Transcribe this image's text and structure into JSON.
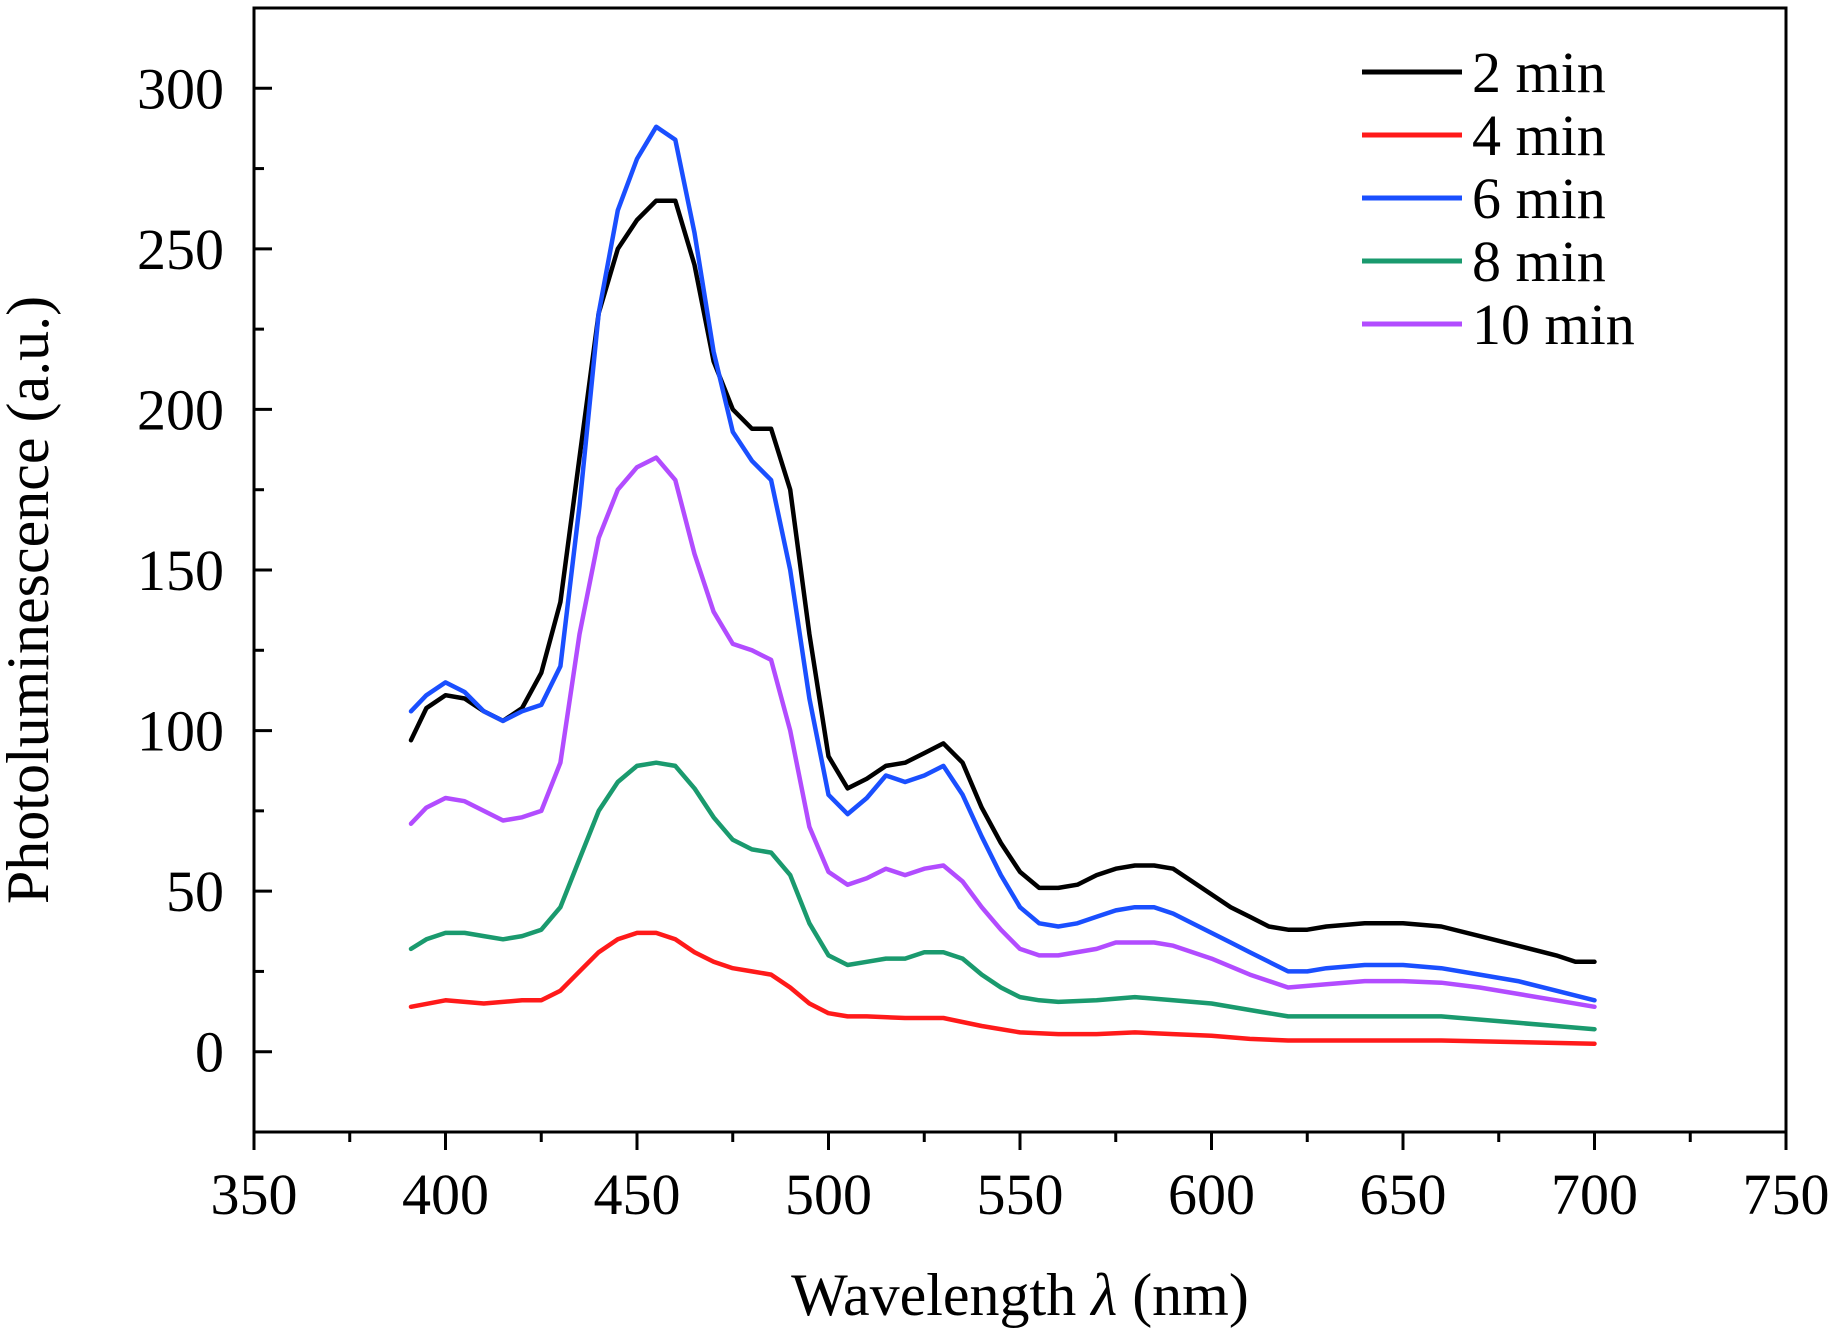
{
  "chart_data": {
    "type": "line",
    "title": "",
    "xlabel": "Wavelength λ (nm)",
    "xlabel_main": "Wavelength ",
    "xlabel_symbol": "λ",
    "xlabel_unit": " (nm)",
    "ylabel": "Photoluminescence (a.u.)",
    "xlim": [
      350,
      750
    ],
    "ylim": [
      -25,
      325
    ],
    "x_ticks": [
      "350",
      "400",
      "450",
      "500",
      "550",
      "600",
      "650",
      "700",
      "750"
    ],
    "y_ticks": [
      "0",
      "50",
      "100",
      "150",
      "200",
      "250",
      "300"
    ],
    "grid": false,
    "legend_position": "top-right",
    "series": [
      {
        "name": "2 min",
        "color": "#000000",
        "points": [
          [
            391,
            97
          ],
          [
            395,
            107
          ],
          [
            400,
            111
          ],
          [
            405,
            110
          ],
          [
            410,
            106
          ],
          [
            415,
            103
          ],
          [
            420,
            107
          ],
          [
            425,
            118
          ],
          [
            430,
            140
          ],
          [
            435,
            185
          ],
          [
            440,
            230
          ],
          [
            445,
            250
          ],
          [
            450,
            259
          ],
          [
            455,
            265
          ],
          [
            460,
            265
          ],
          [
            465,
            245
          ],
          [
            470,
            215
          ],
          [
            475,
            200
          ],
          [
            480,
            194
          ],
          [
            485,
            194
          ],
          [
            490,
            175
          ],
          [
            495,
            130
          ],
          [
            500,
            92
          ],
          [
            505,
            82
          ],
          [
            510,
            85
          ],
          [
            515,
            89
          ],
          [
            520,
            90
          ],
          [
            525,
            93
          ],
          [
            530,
            96
          ],
          [
            535,
            90
          ],
          [
            540,
            76
          ],
          [
            545,
            65
          ],
          [
            550,
            56
          ],
          [
            555,
            51
          ],
          [
            560,
            51
          ],
          [
            565,
            52
          ],
          [
            570,
            55
          ],
          [
            575,
            57
          ],
          [
            580,
            58
          ],
          [
            585,
            58
          ],
          [
            590,
            57
          ],
          [
            595,
            53
          ],
          [
            600,
            49
          ],
          [
            605,
            45
          ],
          [
            610,
            42
          ],
          [
            615,
            39
          ],
          [
            620,
            38
          ],
          [
            625,
            38
          ],
          [
            630,
            39
          ],
          [
            640,
            40
          ],
          [
            650,
            40
          ],
          [
            660,
            39
          ],
          [
            670,
            36
          ],
          [
            680,
            33
          ],
          [
            690,
            30
          ],
          [
            695,
            28
          ],
          [
            700,
            28
          ]
        ]
      },
      {
        "name": "4 min",
        "color": "#ff1a1a",
        "points": [
          [
            391,
            14
          ],
          [
            400,
            16
          ],
          [
            410,
            15
          ],
          [
            420,
            16
          ],
          [
            425,
            16
          ],
          [
            430,
            19
          ],
          [
            435,
            25
          ],
          [
            440,
            31
          ],
          [
            445,
            35
          ],
          [
            450,
            37
          ],
          [
            455,
            37
          ],
          [
            460,
            35
          ],
          [
            465,
            31
          ],
          [
            470,
            28
          ],
          [
            475,
            26
          ],
          [
            480,
            25
          ],
          [
            485,
            24
          ],
          [
            490,
            20
          ],
          [
            495,
            15
          ],
          [
            500,
            12
          ],
          [
            505,
            11
          ],
          [
            510,
            11
          ],
          [
            520,
            10.5
          ],
          [
            530,
            10.5
          ],
          [
            540,
            8
          ],
          [
            550,
            6
          ],
          [
            560,
            5.5
          ],
          [
            570,
            5.5
          ],
          [
            580,
            6
          ],
          [
            590,
            5.5
          ],
          [
            600,
            5
          ],
          [
            610,
            4
          ],
          [
            620,
            3.5
          ],
          [
            640,
            3.5
          ],
          [
            660,
            3.5
          ],
          [
            680,
            3
          ],
          [
            700,
            2.5
          ]
        ]
      },
      {
        "name": "6 min",
        "color": "#1a4fff",
        "points": [
          [
            391,
            106
          ],
          [
            395,
            111
          ],
          [
            400,
            115
          ],
          [
            405,
            112
          ],
          [
            410,
            106
          ],
          [
            415,
            103
          ],
          [
            420,
            106
          ],
          [
            425,
            108
          ],
          [
            430,
            120
          ],
          [
            435,
            170
          ],
          [
            440,
            230
          ],
          [
            445,
            262
          ],
          [
            450,
            278
          ],
          [
            455,
            288
          ],
          [
            460,
            284
          ],
          [
            465,
            255
          ],
          [
            470,
            218
          ],
          [
            475,
            193
          ],
          [
            480,
            184
          ],
          [
            485,
            178
          ],
          [
            490,
            150
          ],
          [
            495,
            110
          ],
          [
            500,
            80
          ],
          [
            505,
            74
          ],
          [
            510,
            79
          ],
          [
            515,
            86
          ],
          [
            520,
            84
          ],
          [
            525,
            86
          ],
          [
            530,
            89
          ],
          [
            535,
            80
          ],
          [
            540,
            67
          ],
          [
            545,
            55
          ],
          [
            550,
            45
          ],
          [
            555,
            40
          ],
          [
            560,
            39
          ],
          [
            565,
            40
          ],
          [
            570,
            42
          ],
          [
            575,
            44
          ],
          [
            580,
            45
          ],
          [
            585,
            45
          ],
          [
            590,
            43
          ],
          [
            595,
            40
          ],
          [
            600,
            37
          ],
          [
            605,
            34
          ],
          [
            610,
            31
          ],
          [
            615,
            28
          ],
          [
            620,
            25
          ],
          [
            625,
            25
          ],
          [
            630,
            26
          ],
          [
            640,
            27
          ],
          [
            650,
            27
          ],
          [
            660,
            26
          ],
          [
            670,
            24
          ],
          [
            680,
            22
          ],
          [
            690,
            19
          ],
          [
            700,
            16
          ]
        ]
      },
      {
        "name": "8 min",
        "color": "#1a9a6e",
        "points": [
          [
            391,
            32
          ],
          [
            395,
            35
          ],
          [
            400,
            37
          ],
          [
            405,
            37
          ],
          [
            410,
            36
          ],
          [
            415,
            35
          ],
          [
            420,
            36
          ],
          [
            425,
            38
          ],
          [
            430,
            45
          ],
          [
            435,
            60
          ],
          [
            440,
            75
          ],
          [
            445,
            84
          ],
          [
            450,
            89
          ],
          [
            455,
            90
          ],
          [
            460,
            89
          ],
          [
            465,
            82
          ],
          [
            470,
            73
          ],
          [
            475,
            66
          ],
          [
            480,
            63
          ],
          [
            485,
            62
          ],
          [
            490,
            55
          ],
          [
            495,
            40
          ],
          [
            500,
            30
          ],
          [
            505,
            27
          ],
          [
            510,
            28
          ],
          [
            515,
            29
          ],
          [
            520,
            29
          ],
          [
            525,
            31
          ],
          [
            530,
            31
          ],
          [
            535,
            29
          ],
          [
            540,
            24
          ],
          [
            545,
            20
          ],
          [
            550,
            17
          ],
          [
            555,
            16
          ],
          [
            560,
            15.5
          ],
          [
            570,
            16
          ],
          [
            580,
            17
          ],
          [
            590,
            16
          ],
          [
            600,
            15
          ],
          [
            610,
            13
          ],
          [
            620,
            11
          ],
          [
            640,
            11
          ],
          [
            660,
            11
          ],
          [
            680,
            9
          ],
          [
            700,
            7
          ]
        ]
      },
      {
        "name": "10 min",
        "color": "#b24cff",
        "points": [
          [
            391,
            71
          ],
          [
            395,
            76
          ],
          [
            400,
            79
          ],
          [
            405,
            78
          ],
          [
            410,
            75
          ],
          [
            415,
            72
          ],
          [
            420,
            73
          ],
          [
            425,
            75
          ],
          [
            430,
            90
          ],
          [
            435,
            130
          ],
          [
            440,
            160
          ],
          [
            445,
            175
          ],
          [
            450,
            182
          ],
          [
            455,
            185
          ],
          [
            460,
            178
          ],
          [
            465,
            155
          ],
          [
            470,
            137
          ],
          [
            475,
            127
          ],
          [
            480,
            125
          ],
          [
            485,
            122
          ],
          [
            490,
            100
          ],
          [
            495,
            70
          ],
          [
            500,
            56
          ],
          [
            505,
            52
          ],
          [
            510,
            54
          ],
          [
            515,
            57
          ],
          [
            520,
            55
          ],
          [
            525,
            57
          ],
          [
            530,
            58
          ],
          [
            535,
            53
          ],
          [
            540,
            45
          ],
          [
            545,
            38
          ],
          [
            550,
            32
          ],
          [
            555,
            30
          ],
          [
            560,
            30
          ],
          [
            570,
            32
          ],
          [
            575,
            34
          ],
          [
            580,
            34
          ],
          [
            585,
            34
          ],
          [
            590,
            33
          ],
          [
            600,
            29
          ],
          [
            610,
            24
          ],
          [
            620,
            20
          ],
          [
            630,
            21
          ],
          [
            640,
            22
          ],
          [
            650,
            22
          ],
          [
            660,
            21.5
          ],
          [
            670,
            20
          ],
          [
            680,
            18
          ],
          [
            690,
            16
          ],
          [
            700,
            14
          ]
        ]
      }
    ]
  }
}
